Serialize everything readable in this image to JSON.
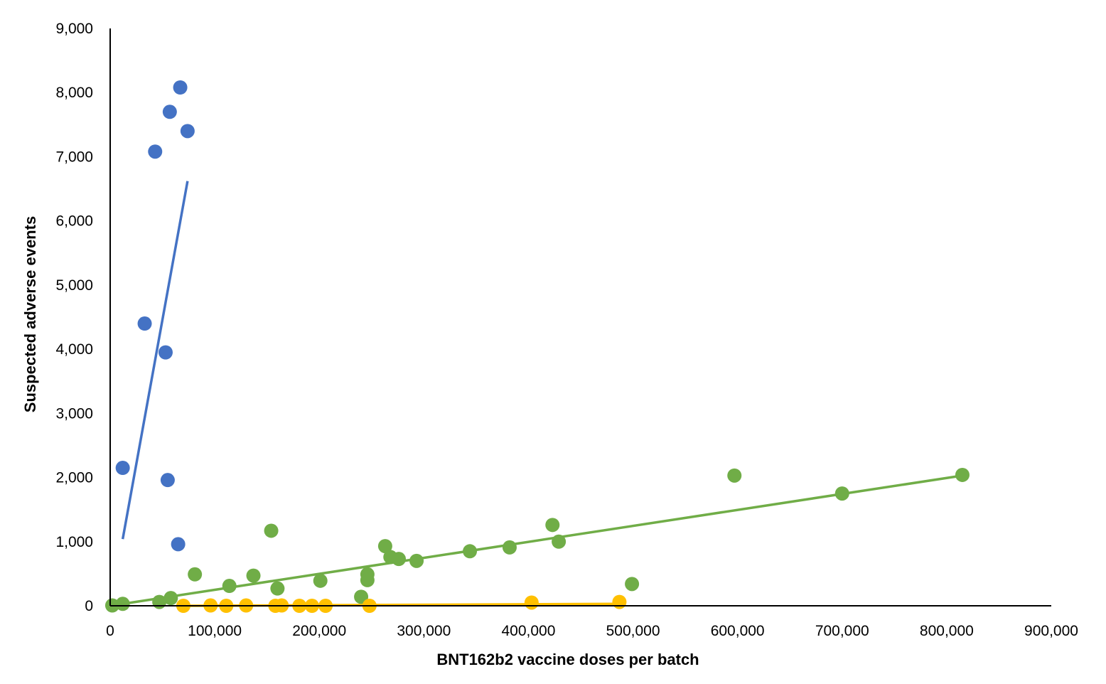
{
  "chart_data": {
    "type": "scatter",
    "title": "",
    "xlabel": "BNT162b2 vaccine doses per batch",
    "ylabel": "Suspected adverse events",
    "xlim": [
      0,
      900000
    ],
    "ylim": [
      0,
      9000
    ],
    "x_ticks": [
      "0",
      "100,000",
      "200,000",
      "300,000",
      "400,000",
      "500,000",
      "600,000",
      "700,000",
      "800,000",
      "900,000"
    ],
    "y_ticks": [
      "0",
      "1,000",
      "2,000",
      "3,000",
      "4,000",
      "5,000",
      "6,000",
      "7,000",
      "8,000",
      "9,000"
    ],
    "grid": false,
    "legend": "none",
    "series": [
      {
        "color": "#4472C4",
        "points": [
          {
            "x": 12000,
            "y": 2150
          },
          {
            "x": 33000,
            "y": 4400
          },
          {
            "x": 43000,
            "y": 7080
          },
          {
            "x": 53000,
            "y": 3950
          },
          {
            "x": 55000,
            "y": 1960
          },
          {
            "x": 57000,
            "y": 7700
          },
          {
            "x": 65000,
            "y": 960
          },
          {
            "x": 67000,
            "y": 8080
          },
          {
            "x": 74000,
            "y": 7400
          }
        ],
        "trendline": [
          {
            "x": 12000,
            "y": 1040
          },
          {
            "x": 74000,
            "y": 6620
          }
        ]
      },
      {
        "color": "#70AD47",
        "points": [
          {
            "x": 2000,
            "y": 5
          },
          {
            "x": 12000,
            "y": 30
          },
          {
            "x": 47000,
            "y": 60
          },
          {
            "x": 58000,
            "y": 120
          },
          {
            "x": 81000,
            "y": 490
          },
          {
            "x": 114000,
            "y": 310
          },
          {
            "x": 137000,
            "y": 470
          },
          {
            "x": 154000,
            "y": 1170
          },
          {
            "x": 160000,
            "y": 270
          },
          {
            "x": 201000,
            "y": 390
          },
          {
            "x": 240000,
            "y": 140
          },
          {
            "x": 246000,
            "y": 490
          },
          {
            "x": 246000,
            "y": 400
          },
          {
            "x": 263000,
            "y": 930
          },
          {
            "x": 268000,
            "y": 760
          },
          {
            "x": 276000,
            "y": 730
          },
          {
            "x": 293000,
            "y": 700
          },
          {
            "x": 344000,
            "y": 850
          },
          {
            "x": 382000,
            "y": 910
          },
          {
            "x": 423000,
            "y": 1260
          },
          {
            "x": 429000,
            "y": 1000
          },
          {
            "x": 499000,
            "y": 340
          },
          {
            "x": 597000,
            "y": 2030
          },
          {
            "x": 700000,
            "y": 1750
          },
          {
            "x": 815000,
            "y": 2040
          }
        ],
        "trendline": [
          {
            "x": 0,
            "y": 0
          },
          {
            "x": 815000,
            "y": 2030
          }
        ]
      },
      {
        "color": "#FFC000",
        "points": [
          {
            "x": 70000,
            "y": 0
          },
          {
            "x": 96000,
            "y": 5
          },
          {
            "x": 111000,
            "y": 0
          },
          {
            "x": 130000,
            "y": 5
          },
          {
            "x": 158000,
            "y": 0
          },
          {
            "x": 164000,
            "y": 5
          },
          {
            "x": 181000,
            "y": 0
          },
          {
            "x": 193000,
            "y": 0
          },
          {
            "x": 206000,
            "y": 0
          },
          {
            "x": 248000,
            "y": 0
          },
          {
            "x": 403000,
            "y": 50
          },
          {
            "x": 487000,
            "y": 60
          }
        ],
        "trendline": [
          {
            "x": 70000,
            "y": 0
          },
          {
            "x": 487000,
            "y": 30
          }
        ]
      }
    ]
  }
}
